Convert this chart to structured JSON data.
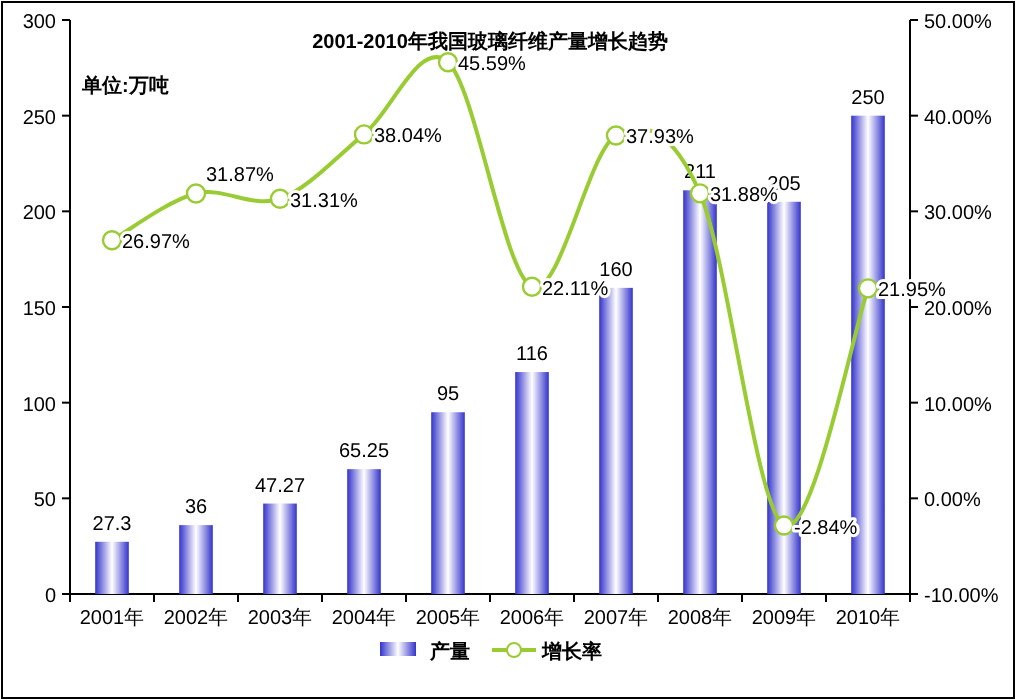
{
  "chart_data": {
    "type": "bar",
    "title": "2001-2010年我国玻璃纤维产量增长趋势",
    "annotations": [
      "单位:万吨"
    ],
    "categories": [
      "2001年",
      "2002年",
      "2003年",
      "2004年",
      "2005年",
      "2006年",
      "2007年",
      "2008年",
      "2009年",
      "2010年"
    ],
    "series": [
      {
        "name": "产量",
        "color": "#3333cc",
        "values": [
          27.3,
          36,
          47.27,
          65.25,
          95,
          116,
          160,
          211,
          205,
          250
        ],
        "value_labels": [
          "27.3",
          "36",
          "47.27",
          "65.25",
          "95",
          "116",
          "160",
          "211",
          "205",
          "250"
        ]
      },
      {
        "name": "增长率",
        "type": "line",
        "axis": "y2",
        "color": "#99cc33",
        "marker": "circle",
        "values": [
          26.97,
          31.87,
          31.31,
          38.04,
          45.59,
          22.11,
          37.93,
          31.88,
          -2.84,
          21.95
        ],
        "value_labels": [
          "26.97%",
          "31.87%",
          "31.31%",
          "38.04%",
          "45.59%",
          "22.11%",
          "37.93%",
          "31.88%",
          "-2.84%",
          "21.95%"
        ]
      }
    ],
    "ylim": [
      0,
      300
    ],
    "yticks": [
      0,
      50,
      100,
      150,
      200,
      250,
      300
    ],
    "y2lim": [
      -10,
      50
    ],
    "y2ticks": [
      {
        "value": -10,
        "label": "-10.00%"
      },
      {
        "value": 0,
        "label": "0.00%"
      },
      {
        "value": 10,
        "label": "10.00%"
      },
      {
        "value": 20,
        "label": "20.00%"
      },
      {
        "value": 30,
        "label": "30.00%"
      },
      {
        "value": 40,
        "label": "40.00%"
      },
      {
        "value": 50,
        "label": "50.00%"
      }
    ],
    "grid": false,
    "legend": "bottom"
  }
}
